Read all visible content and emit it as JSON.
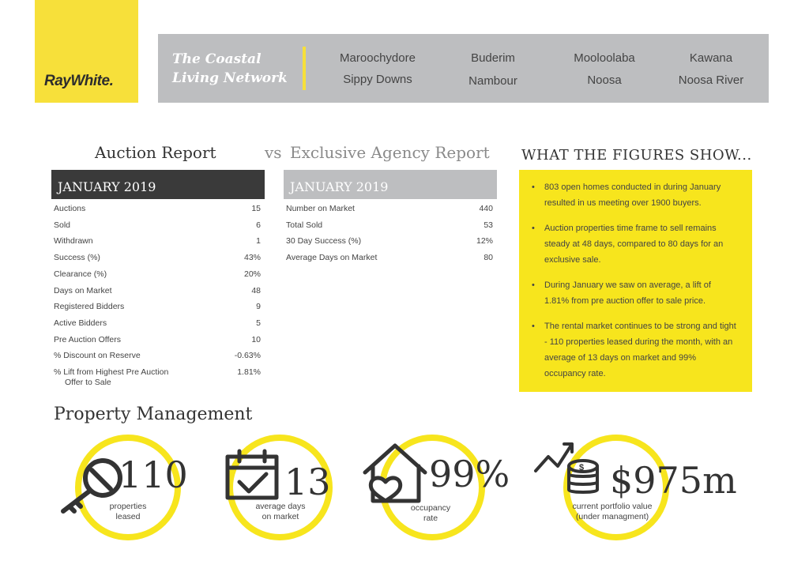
{
  "logo": {
    "text": "RayWhite."
  },
  "banner": {
    "tagline_line1": "The Coastal",
    "tagline_line2": "Living Network",
    "locations": [
      "Maroochydore",
      "Buderim",
      "Mooloolaba",
      "Kawana",
      "Sippy Downs",
      "Nambour",
      "Noosa",
      "Noosa River"
    ]
  },
  "auction": {
    "title": "Auction Report",
    "period": "JANUARY 2019",
    "rows": [
      {
        "label": "Auctions",
        "value": "15"
      },
      {
        "label": "Sold",
        "value": "6"
      },
      {
        "label": "Withdrawn",
        "value": "1"
      },
      {
        "label": "Success (%)",
        "value": "43%"
      },
      {
        "label": "Clearance (%)",
        "value": "20%"
      },
      {
        "label": "Days on Market",
        "value": "48"
      },
      {
        "label": "Registered Bidders",
        "value": "9"
      },
      {
        "label": "Active Bidders",
        "value": "5"
      },
      {
        "label": "Pre Auction Offers",
        "value": "10"
      },
      {
        "label": "% Discount on Reserve",
        "value": "-0.63%"
      },
      {
        "label": "% Lift from Highest Pre Auction",
        "label2": "Offer to Sale",
        "value": "1.81%"
      }
    ]
  },
  "vs": "vs",
  "exclusive": {
    "title": "Exclusive Agency Report",
    "period": "JANUARY 2019",
    "rows": [
      {
        "label": "Number on Market",
        "value": "440"
      },
      {
        "label": "Total Sold",
        "value": "53"
      },
      {
        "label": "30 Day Success (%)",
        "value": "12%"
      },
      {
        "label": "Average Days on Market",
        "value": "80"
      }
    ]
  },
  "figures": {
    "title": "WHAT THE FIGURES SHOW...",
    "bullets": [
      "803 open homes conducted in during January resulted in us meeting over 1900 buyers.",
      "Auction properties time frame to sell remains steady at 48 days, compared to 80 days for an exclusive sale.",
      "During January we saw  on average, a lift of 1.81% from pre auction offer to sale price.",
      "The rental market continues to be strong and tight - 110 properties leased during the month, with an average of 13 days on market and 99% occupancy rate."
    ]
  },
  "property_management": {
    "title": "Property Management",
    "stats": [
      {
        "value": "110",
        "caption1": "properties",
        "caption2": "leased",
        "icon": "key-icon"
      },
      {
        "value": "13",
        "caption1": "average days",
        "caption2": "on market",
        "icon": "calendar-check-icon"
      },
      {
        "value": "99%",
        "caption1": "occupancy",
        "caption2": "rate",
        "icon": "house-heart-icon"
      },
      {
        "value": "$975m",
        "caption1": "current portfolio value",
        "caption2": "(under managment)",
        "icon": "coins-growth-icon"
      }
    ]
  },
  "colors": {
    "yellow": "#f7e51d",
    "grey": "#bdbec0",
    "dark": "#3a3a3a"
  }
}
